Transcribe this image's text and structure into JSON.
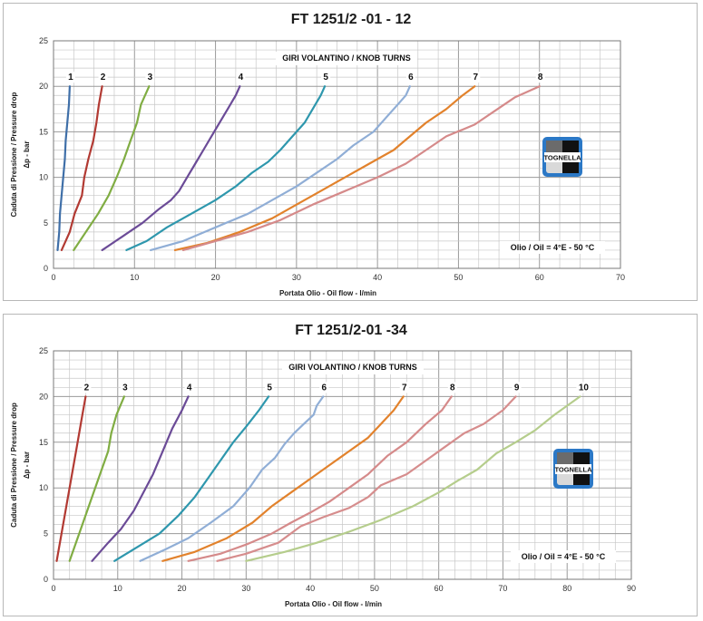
{
  "colors": {
    "1": "#3f6fa8",
    "2": "#b23a33",
    "3": "#80ad43",
    "4": "#6b4b97",
    "5": "#2e97ad",
    "6": "#90aed6",
    "7": "#e2822c",
    "8": "#d58a8a",
    "9": "#d68d8d",
    "10": "#b5cd8c"
  },
  "logo": {
    "text": "TOGNELLA"
  },
  "chart_data": [
    {
      "type": "line",
      "title": "FT 1251/2 -01 - 12",
      "xlabel": "Portata Olio - Oil flow -  l/min",
      "ylabel": "Caduta di Pressione / Pressure drop",
      "ylabel2": "Δp - bar",
      "xlim": [
        0,
        70
      ],
      "ylim": [
        0,
        25
      ],
      "xticks": [
        0,
        10,
        20,
        30,
        40,
        50,
        60,
        70
      ],
      "yticks": [
        0,
        5,
        10,
        15,
        20,
        25
      ],
      "grid": true,
      "annotation": "GIRI VOLANTINO / KNOB TURNS",
      "note": "Olio / Oil = 4°E - 50 °C",
      "series": [
        {
          "name": "1",
          "points": [
            [
              0.5,
              2
            ],
            [
              0.7,
              4
            ],
            [
              0.8,
              6
            ],
            [
              1.0,
              8
            ],
            [
              1.2,
              10
            ],
            [
              1.4,
              12
            ],
            [
              1.5,
              14
            ],
            [
              1.7,
              16
            ],
            [
              1.9,
              18
            ],
            [
              2.0,
              20
            ]
          ]
        },
        {
          "name": "2",
          "points": [
            [
              1.0,
              2
            ],
            [
              2.0,
              4
            ],
            [
              2.6,
              6
            ],
            [
              3.5,
              8
            ],
            [
              3.8,
              10
            ],
            [
              4.3,
              12
            ],
            [
              4.9,
              14
            ],
            [
              5.3,
              16
            ],
            [
              5.6,
              18
            ],
            [
              6.0,
              20
            ]
          ]
        },
        {
          "name": "3",
          "points": [
            [
              2.5,
              2
            ],
            [
              4.0,
              4
            ],
            [
              5.5,
              6
            ],
            [
              6.8,
              8
            ],
            [
              7.8,
              10
            ],
            [
              8.7,
              12
            ],
            [
              9.5,
              14
            ],
            [
              10.3,
              16
            ],
            [
              10.8,
              18
            ],
            [
              11.8,
              20
            ]
          ]
        },
        {
          "name": "4",
          "points": [
            [
              6.0,
              2
            ],
            [
              8.5,
              3.5
            ],
            [
              11,
              5
            ],
            [
              13,
              6.5
            ],
            [
              14.5,
              7.5
            ],
            [
              15.5,
              8.5
            ],
            [
              16.5,
              10
            ],
            [
              17.5,
              11.5
            ],
            [
              18.5,
              13
            ],
            [
              19.5,
              14.5
            ],
            [
              20.5,
              16
            ],
            [
              21.5,
              17.5
            ],
            [
              22.5,
              19
            ],
            [
              23,
              20
            ]
          ]
        },
        {
          "name": "5",
          "points": [
            [
              9,
              2
            ],
            [
              11.5,
              3
            ],
            [
              14,
              4.5
            ],
            [
              17,
              6
            ],
            [
              20,
              7.5
            ],
            [
              22.5,
              9
            ],
            [
              24.5,
              10.5
            ],
            [
              26.5,
              11.7
            ],
            [
              28,
              13
            ],
            [
              29.5,
              14.5
            ],
            [
              31,
              16
            ],
            [
              32,
              17.5
            ],
            [
              33,
              19
            ],
            [
              33.5,
              20
            ]
          ]
        },
        {
          "name": "6",
          "points": [
            [
              12,
              2
            ],
            [
              16,
              3
            ],
            [
              20,
              4.5
            ],
            [
              24,
              6
            ],
            [
              27,
              7.5
            ],
            [
              30,
              9
            ],
            [
              32.5,
              10.5
            ],
            [
              35,
              12
            ],
            [
              37,
              13.5
            ],
            [
              39.5,
              15
            ],
            [
              41,
              16.5
            ],
            [
              42.5,
              18
            ],
            [
              43.5,
              19
            ],
            [
              44,
              20
            ]
          ]
        },
        {
          "name": "7",
          "points": [
            [
              15,
              2
            ],
            [
              19,
              2.8
            ],
            [
              23,
              4
            ],
            [
              27,
              5.5
            ],
            [
              30,
              7
            ],
            [
              33,
              8.5
            ],
            [
              36,
              10
            ],
            [
              39,
              11.5
            ],
            [
              42,
              13
            ],
            [
              44,
              14.5
            ],
            [
              46,
              16
            ],
            [
              48.5,
              17.5
            ],
            [
              50.5,
              19
            ],
            [
              52,
              20
            ]
          ]
        },
        {
          "name": "8",
          "points": [
            [
              16,
              2
            ],
            [
              20,
              3
            ],
            [
              24,
              4
            ],
            [
              28,
              5.3
            ],
            [
              32,
              7
            ],
            [
              36,
              8.5
            ],
            [
              40,
              10
            ],
            [
              43.5,
              11.5
            ],
            [
              46,
              13
            ],
            [
              48.5,
              14.5
            ],
            [
              52,
              15.8
            ],
            [
              54,
              17
            ],
            [
              57,
              18.8
            ],
            [
              60,
              20
            ]
          ]
        }
      ]
    },
    {
      "type": "line",
      "title": "FT 1251/2-01 -34",
      "xlabel": "Portata Olio - Oil flow -  l/min",
      "ylabel": "Caduta di Pressione / Pressure drop",
      "ylabel2": "Δp - bar",
      "xlim": [
        0,
        90
      ],
      "ylim": [
        0,
        25
      ],
      "xticks": [
        0,
        10,
        20,
        30,
        40,
        50,
        60,
        70,
        80,
        90
      ],
      "yticks": [
        0,
        5,
        10,
        15,
        20,
        25
      ],
      "grid": true,
      "annotation": "GIRI VOLANTINO / KNOB TURNS",
      "note": "Olio / Oil = 4°E - 50 °C",
      "series": [
        {
          "name": "2",
          "points": [
            [
              0.5,
              2
            ],
            [
              1.5,
              6
            ],
            [
              2.5,
              10
            ],
            [
              3.5,
              14
            ],
            [
              4.5,
              18
            ],
            [
              5,
              20
            ]
          ]
        },
        {
          "name": "3",
          "points": [
            [
              2.5,
              2
            ],
            [
              4,
              5
            ],
            [
              5.5,
              8
            ],
            [
              7,
              11
            ],
            [
              8.5,
              14
            ],
            [
              9,
              16
            ],
            [
              9.8,
              18
            ],
            [
              11,
              20
            ]
          ]
        },
        {
          "name": "4",
          "points": [
            [
              6,
              2
            ],
            [
              8.5,
              4
            ],
            [
              10.5,
              5.5
            ],
            [
              12.5,
              7.5
            ],
            [
              14,
              9.5
            ],
            [
              15.5,
              11.5
            ],
            [
              17,
              14
            ],
            [
              18.5,
              16.5
            ],
            [
              20,
              18.5
            ],
            [
              21,
              20
            ]
          ]
        },
        {
          "name": "5",
          "points": [
            [
              9.5,
              2
            ],
            [
              13,
              3.5
            ],
            [
              16.5,
              5
            ],
            [
              19.5,
              7
            ],
            [
              22,
              9
            ],
            [
              24,
              11
            ],
            [
              26,
              13
            ],
            [
              28,
              15
            ],
            [
              30,
              16.7
            ],
            [
              32,
              18.5
            ],
            [
              33.5,
              20
            ]
          ]
        },
        {
          "name": "6",
          "points": [
            [
              13.5,
              2
            ],
            [
              17.5,
              3.3
            ],
            [
              21,
              4.5
            ],
            [
              24.5,
              6.2
            ],
            [
              28,
              8
            ],
            [
              30.5,
              10
            ],
            [
              32.5,
              12
            ],
            [
              34.5,
              13.3
            ],
            [
              36,
              14.8
            ],
            [
              37.5,
              16
            ],
            [
              39,
              17
            ],
            [
              40.5,
              18
            ],
            [
              41,
              19
            ],
            [
              42,
              20
            ]
          ]
        },
        {
          "name": "7",
          "points": [
            [
              17,
              2
            ],
            [
              22,
              3
            ],
            [
              27,
              4.5
            ],
            [
              31,
              6.2
            ],
            [
              34,
              8
            ],
            [
              37,
              9.5
            ],
            [
              40,
              11
            ],
            [
              43,
              12.5
            ],
            [
              46,
              14
            ],
            [
              49,
              15.5
            ],
            [
              51,
              17
            ],
            [
              53,
              18.5
            ],
            [
              54.5,
              20
            ]
          ]
        },
        {
          "name": "8",
          "points": [
            [
              21,
              2
            ],
            [
              26,
              2.8
            ],
            [
              30,
              3.8
            ],
            [
              34,
              5
            ],
            [
              37,
              6.2
            ],
            [
              40,
              7.3
            ],
            [
              43,
              8.5
            ],
            [
              46,
              10
            ],
            [
              49,
              11.5
            ],
            [
              52,
              13.5
            ],
            [
              55,
              15
            ],
            [
              58,
              17
            ],
            [
              60.5,
              18.5
            ],
            [
              62,
              20
            ]
          ]
        },
        {
          "name": "9",
          "points": [
            [
              25.5,
              2
            ],
            [
              30,
              2.8
            ],
            [
              35,
              4
            ],
            [
              38.5,
              5.8
            ],
            [
              42,
              6.8
            ],
            [
              46,
              7.8
            ],
            [
              49,
              9
            ],
            [
              51,
              10.3
            ],
            [
              55,
              11.5
            ],
            [
              58,
              13
            ],
            [
              61,
              14.5
            ],
            [
              64,
              16
            ],
            [
              67,
              17
            ],
            [
              70,
              18.5
            ],
            [
              72,
              20
            ]
          ]
        },
        {
          "name": "10",
          "points": [
            [
              30,
              2
            ],
            [
              36,
              3
            ],
            [
              41,
              4
            ],
            [
              46,
              5.2
            ],
            [
              51,
              6.5
            ],
            [
              56,
              8
            ],
            [
              60,
              9.5
            ],
            [
              63,
              10.8
            ],
            [
              66,
              12
            ],
            [
              69,
              13.8
            ],
            [
              72,
              15
            ],
            [
              75,
              16.3
            ],
            [
              78,
              18
            ],
            [
              82,
              20
            ]
          ]
        }
      ]
    }
  ]
}
